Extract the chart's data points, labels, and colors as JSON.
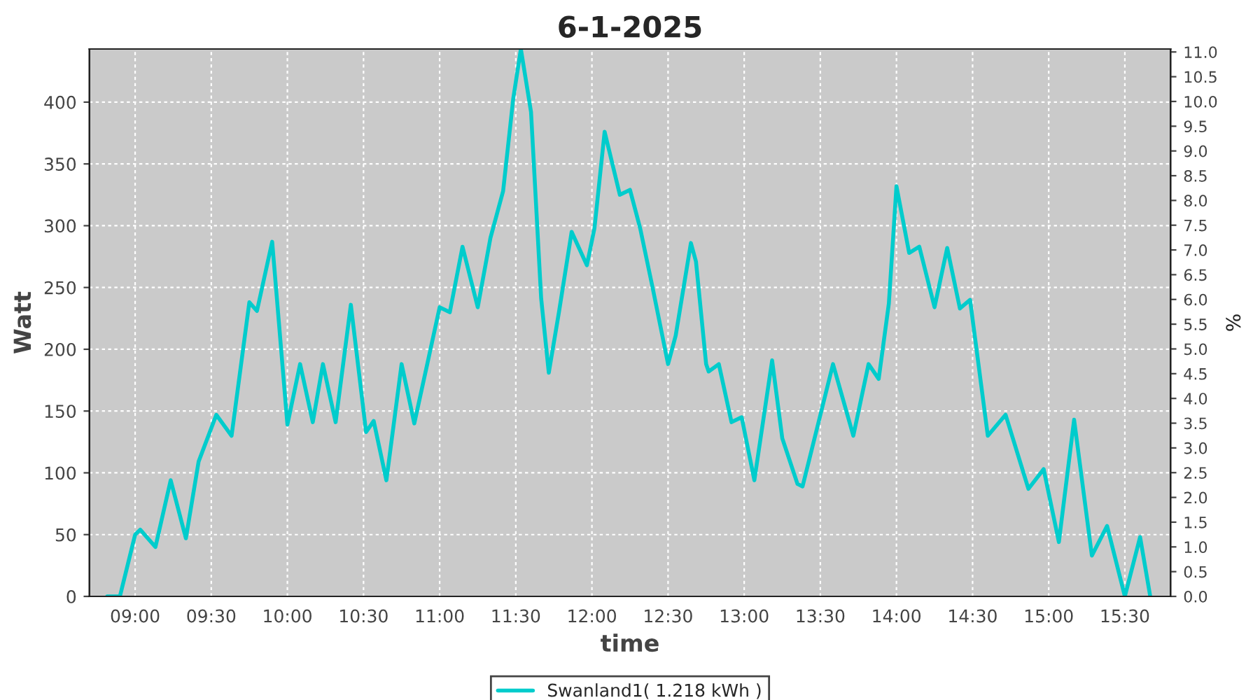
{
  "chart_data": {
    "type": "line",
    "title": "6-1-2025",
    "xlabel": "time",
    "ylabel": "Watt",
    "y2label": "%",
    "x": [
      "2025-01-06T08:49",
      "2025-01-06T08:54",
      "2025-01-06T09:00",
      "2025-01-06T09:02",
      "2025-01-06T09:08",
      "2025-01-06T09:14",
      "2025-01-06T09:20",
      "2025-01-06T09:25",
      "2025-01-06T09:32",
      "2025-01-06T09:38",
      "2025-01-06T09:45",
      "2025-01-06T09:48",
      "2025-01-06T09:54",
      "2025-01-06T10:00",
      "2025-01-06T10:05",
      "2025-01-06T10:10",
      "2025-01-06T10:14",
      "2025-01-06T10:19",
      "2025-01-06T10:25",
      "2025-01-06T10:31",
      "2025-01-06T10:34",
      "2025-01-06T10:39",
      "2025-01-06T10:45",
      "2025-01-06T10:50",
      "2025-01-06T11:00",
      "2025-01-06T11:04",
      "2025-01-06T11:09",
      "2025-01-06T11:15",
      "2025-01-06T11:20",
      "2025-01-06T11:25",
      "2025-01-06T11:29",
      "2025-01-06T11:32",
      "2025-01-06T11:36",
      "2025-01-06T11:40",
      "2025-01-06T11:43",
      "2025-01-06T11:47",
      "2025-01-06T11:52",
      "2025-01-06T11:58",
      "2025-01-06T12:01",
      "2025-01-06T12:05",
      "2025-01-06T12:11",
      "2025-01-06T12:15",
      "2025-01-06T12:19",
      "2025-01-06T12:24",
      "2025-01-06T12:30",
      "2025-01-06T12:33",
      "2025-01-06T12:39",
      "2025-01-06T12:41",
      "2025-01-06T12:45",
      "2025-01-06T12:46",
      "2025-01-06T12:50",
      "2025-01-06T12:55",
      "2025-01-06T12:59",
      "2025-01-06T13:04",
      "2025-01-06T13:11",
      "2025-01-06T13:15",
      "2025-01-06T13:21",
      "2025-01-06T13:23",
      "2025-01-06T13:35",
      "2025-01-06T13:43",
      "2025-01-06T13:49",
      "2025-01-06T13:53",
      "2025-01-06T13:57",
      "2025-01-06T14:00",
      "2025-01-06T14:05",
      "2025-01-06T14:09",
      "2025-01-06T14:15",
      "2025-01-06T14:20",
      "2025-01-06T14:25",
      "2025-01-06T14:29",
      "2025-01-06T14:36",
      "2025-01-06T14:43",
      "2025-01-06T14:52",
      "2025-01-06T14:58",
      "2025-01-06T15:04",
      "2025-01-06T15:10",
      "2025-01-06T15:17",
      "2025-01-06T15:23",
      "2025-01-06T15:30",
      "2025-01-06T15:36",
      "2025-01-06T15:40"
    ],
    "series": [
      {
        "name": "Swanland1( 1.218 kWh )",
        "color": "#00cccc",
        "values": [
          0,
          0,
          50,
          54,
          40,
          94,
          47,
          109,
          147,
          130,
          238,
          231,
          287,
          139,
          188,
          141,
          188,
          141,
          236,
          133,
          142,
          94,
          188,
          140,
          234,
          230,
          283,
          234,
          290,
          328,
          403,
          443,
          392,
          241,
          181,
          230,
          295,
          268,
          298,
          376,
          325,
          329,
          298,
          249,
          188,
          211,
          286,
          271,
          188,
          182,
          188,
          141,
          145,
          94,
          191,
          128,
          91,
          89,
          188,
          130,
          188,
          176,
          237,
          332,
          278,
          283,
          234,
          282,
          233,
          240,
          130,
          147,
          87,
          103,
          44,
          143,
          33,
          57,
          0,
          48,
          0
        ]
      }
    ],
    "xlim": [
      "2025-01-06T08:42",
      "2025-01-06T15:48"
    ],
    "xticks": [
      {
        "value": "2025-01-06T09:00",
        "label": "09:00"
      },
      {
        "value": "2025-01-06T09:30",
        "label": "09:30"
      },
      {
        "value": "2025-01-06T10:00",
        "label": "10:00"
      },
      {
        "value": "2025-01-06T10:30",
        "label": "10:30"
      },
      {
        "value": "2025-01-06T11:00",
        "label": "11:00"
      },
      {
        "value": "2025-01-06T11:30",
        "label": "11:30"
      },
      {
        "value": "2025-01-06T12:00",
        "label": "12:00"
      },
      {
        "value": "2025-01-06T12:30",
        "label": "12:30"
      },
      {
        "value": "2025-01-06T13:00",
        "label": "13:00"
      },
      {
        "value": "2025-01-06T13:30",
        "label": "13:30"
      },
      {
        "value": "2025-01-06T14:00",
        "label": "14:00"
      },
      {
        "value": "2025-01-06T14:30",
        "label": "14:30"
      },
      {
        "value": "2025-01-06T15:00",
        "label": "15:00"
      },
      {
        "value": "2025-01-06T15:30",
        "label": "15:30"
      }
    ],
    "ylim": [
      0,
      443
    ],
    "yticks": [
      0,
      50,
      100,
      150,
      200,
      250,
      300,
      350,
      400
    ],
    "y2lim": [
      0,
      11.06
    ],
    "y2ticks": [
      {
        "value": 0,
        "label": "0.0"
      },
      0.5,
      {
        "value": 1,
        "label": "1.0"
      },
      1.5,
      {
        "value": 2,
        "label": "2.0"
      },
      2.5,
      {
        "value": 3,
        "label": "3.0"
      },
      3.5,
      {
        "value": 4,
        "label": "4.0"
      },
      4.5,
      {
        "value": 5,
        "label": "5.0"
      },
      5.5,
      {
        "value": 6,
        "label": "6.0"
      },
      6.5,
      {
        "value": 7,
        "label": "7.0"
      },
      7.5,
      {
        "value": 8,
        "label": "8.0"
      },
      8.5,
      {
        "value": 9,
        "label": "9.0"
      },
      9.5,
      {
        "value": 10,
        "label": "10.0"
      },
      10.5,
      {
        "value": 11,
        "label": "11.0"
      }
    ],
    "grid": true,
    "legend": "bottom",
    "marker": "none",
    "line_style": "solid"
  }
}
